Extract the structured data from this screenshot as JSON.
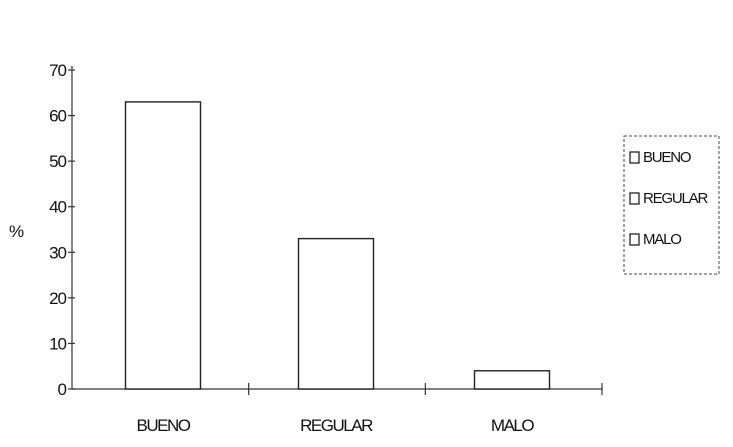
{
  "chart_data": {
    "type": "bar",
    "title": "",
    "ylabel": "%",
    "xlabel": "",
    "categories": [
      "BUENO",
      "REGULAR",
      "MALO"
    ],
    "values": [
      63,
      33,
      4
    ],
    "ylim": [
      0,
      70
    ],
    "yticks": [
      "0",
      "10",
      "20",
      "30",
      "40",
      "50",
      "60",
      "70"
    ],
    "grid": false,
    "legend": {
      "position": "right",
      "items": [
        "BUENO",
        "REGULAR",
        "MALO"
      ]
    },
    "colors": {
      "bar_fill": "#ffffff",
      "bar_stroke": "#222222",
      "axis": "#333333"
    }
  }
}
